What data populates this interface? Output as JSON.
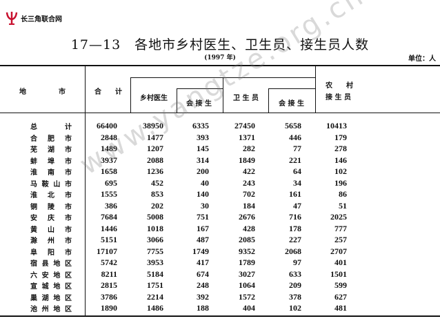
{
  "logo": {
    "text": "长三角联合网"
  },
  "title": "17—13　各地市乡村医生、卫生员、接生员人数",
  "year": "(1997 年)",
  "unit": "单位：人",
  "watermark": "www.yangtze.org.cn",
  "headers": {
    "region": [
      "地",
      "市"
    ],
    "total": "合　　计",
    "village_doctor": "乡村医生",
    "vd_midwife": "会 接 生",
    "health_worker": "卫 生 员",
    "hw_midwife": "会 接 生",
    "rural_midwife_1": "农　　村",
    "rural_midwife_2": "接 生 员"
  },
  "rows": [
    {
      "name": [
        "总",
        "计"
      ],
      "values": [
        "66400",
        "38950",
        "6335",
        "27450",
        "5658",
        "10413"
      ]
    },
    {
      "name": [
        "合",
        "肥",
        "市"
      ],
      "values": [
        "2848",
        "1477",
        "393",
        "1371",
        "446",
        "179"
      ]
    },
    {
      "name": [
        "芜",
        "湖",
        "市"
      ],
      "values": [
        "1489",
        "1207",
        "145",
        "282",
        "77",
        "278"
      ]
    },
    {
      "name": [
        "蚌",
        "埠",
        "市"
      ],
      "values": [
        "3937",
        "2088",
        "314",
        "1849",
        "221",
        "146"
      ]
    },
    {
      "name": [
        "淮",
        "南",
        "市"
      ],
      "values": [
        "1658",
        "1236",
        "200",
        "422",
        "64",
        "102"
      ]
    },
    {
      "name": [
        "马",
        "鞍",
        "山",
        "市"
      ],
      "values": [
        "695",
        "452",
        "40",
        "243",
        "34",
        "196"
      ]
    },
    {
      "name": [
        "淮",
        "北",
        "市"
      ],
      "values": [
        "1555",
        "853",
        "140",
        "702",
        "161",
        "86"
      ]
    },
    {
      "name": [
        "铜",
        "陵",
        "市"
      ],
      "values": [
        "386",
        "202",
        "30",
        "184",
        "47",
        "51"
      ]
    },
    {
      "name": [
        "安",
        "庆",
        "市"
      ],
      "values": [
        "7684",
        "5008",
        "751",
        "2676",
        "716",
        "2025"
      ]
    },
    {
      "name": [
        "黄",
        "山",
        "市"
      ],
      "values": [
        "1446",
        "1018",
        "167",
        "428",
        "178",
        "777"
      ]
    },
    {
      "name": [
        "滁",
        "州",
        "市"
      ],
      "values": [
        "5151",
        "3066",
        "487",
        "2085",
        "227",
        "257"
      ]
    },
    {
      "name": [
        "阜",
        "阳",
        "市"
      ],
      "values": [
        "17107",
        "7755",
        "1749",
        "9352",
        "2068",
        "2707"
      ]
    },
    {
      "name": [
        "宿",
        "县",
        "地",
        "区"
      ],
      "values": [
        "5742",
        "3953",
        "417",
        "1789",
        "97",
        "401"
      ]
    },
    {
      "name": [
        "六",
        "安",
        "地",
        "区"
      ],
      "values": [
        "8211",
        "5184",
        "674",
        "3027",
        "633",
        "1501"
      ]
    },
    {
      "name": [
        "宣",
        "城",
        "地",
        "区"
      ],
      "values": [
        "2815",
        "1751",
        "248",
        "1064",
        "209",
        "599"
      ]
    },
    {
      "name": [
        "巢",
        "湖",
        "地",
        "区"
      ],
      "values": [
        "3786",
        "2214",
        "392",
        "1572",
        "378",
        "627"
      ]
    },
    {
      "name": [
        "池",
        "州",
        "地",
        "区"
      ],
      "values": [
        "1890",
        "1486",
        "188",
        "404",
        "102",
        "481"
      ]
    }
  ]
}
